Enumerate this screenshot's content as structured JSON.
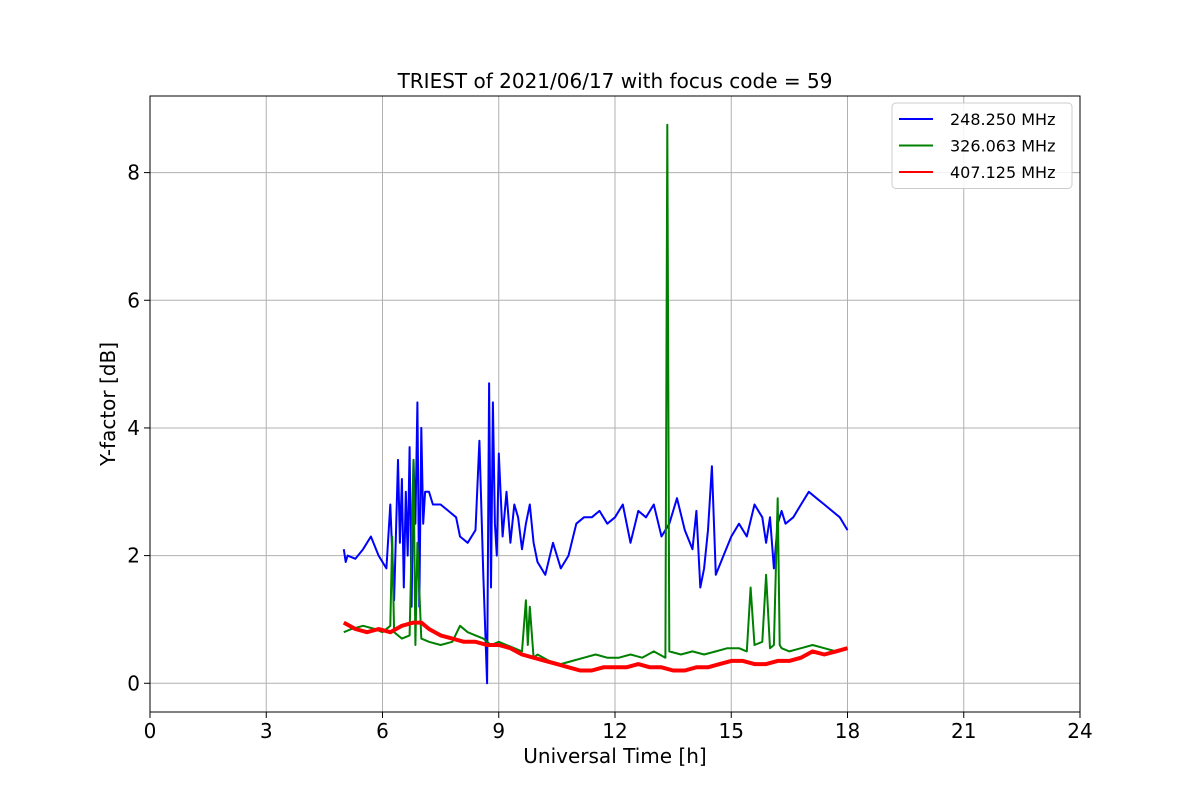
{
  "chart_data": {
    "type": "line",
    "title": "TRIEST of 2021/06/17 with focus code = 59",
    "xlabel": "Universal Time [h]",
    "ylabel": "Y-factor [dB]",
    "xlim": [
      0,
      24
    ],
    "ylim": [
      -0.45,
      9.2
    ],
    "x_ticks": [
      0,
      3,
      6,
      9,
      12,
      15,
      18,
      21,
      24
    ],
    "y_ticks": [
      0,
      2,
      4,
      6,
      8
    ],
    "grid": true,
    "legend_position": "top-right",
    "series": [
      {
        "name": "248.250 MHz",
        "color": "#0000ff",
        "x": [
          5.0,
          5.05,
          5.1,
          5.3,
          5.5,
          5.7,
          5.9,
          6.1,
          6.2,
          6.3,
          6.4,
          6.45,
          6.5,
          6.55,
          6.6,
          6.65,
          6.7,
          6.75,
          6.8,
          6.85,
          6.9,
          6.95,
          7.0,
          7.05,
          7.1,
          7.2,
          7.3,
          7.5,
          7.7,
          7.9,
          8.0,
          8.2,
          8.4,
          8.5,
          8.6,
          8.7,
          8.75,
          8.8,
          8.85,
          8.9,
          8.95,
          9.0,
          9.1,
          9.2,
          9.3,
          9.4,
          9.5,
          9.6,
          9.7,
          9.8,
          9.9,
          10.0,
          10.2,
          10.4,
          10.6,
          10.8,
          11.0,
          11.2,
          11.4,
          11.6,
          11.8,
          12.0,
          12.2,
          12.4,
          12.6,
          12.8,
          13.0,
          13.2,
          13.4,
          13.6,
          13.8,
          14.0,
          14.1,
          14.2,
          14.3,
          14.4,
          14.5,
          14.6,
          14.8,
          15.0,
          15.2,
          15.4,
          15.6,
          15.8,
          15.9,
          16.0,
          16.1,
          16.2,
          16.3,
          16.4,
          16.6,
          16.8,
          17.0,
          17.2,
          17.4,
          17.6,
          17.8,
          18.0
        ],
        "values": [
          2.1,
          1.9,
          2.0,
          1.95,
          2.1,
          2.3,
          2.0,
          1.8,
          2.8,
          1.3,
          3.5,
          2.2,
          3.2,
          1.5,
          3.0,
          2.0,
          3.7,
          1.2,
          3.5,
          2.5,
          4.4,
          1.2,
          4.0,
          2.5,
          3.0,
          3.0,
          2.8,
          2.8,
          2.7,
          2.6,
          2.3,
          2.2,
          2.4,
          3.8,
          1.7,
          0.0,
          4.7,
          1.5,
          4.4,
          2.5,
          2.0,
          3.6,
          2.3,
          3.0,
          2.2,
          2.8,
          2.6,
          2.1,
          2.5,
          2.8,
          2.2,
          1.9,
          1.7,
          2.2,
          1.8,
          2.0,
          2.5,
          2.6,
          2.6,
          2.7,
          2.5,
          2.6,
          2.8,
          2.2,
          2.7,
          2.6,
          2.8,
          2.3,
          2.5,
          2.9,
          2.4,
          2.1,
          2.7,
          1.5,
          1.8,
          2.4,
          3.4,
          1.7,
          2.0,
          2.3,
          2.5,
          2.3,
          2.8,
          2.6,
          2.2,
          2.6,
          1.8,
          2.5,
          2.7,
          2.5,
          2.6,
          2.8,
          3.0,
          2.9,
          2.8,
          2.7,
          2.6,
          2.4
        ]
      },
      {
        "name": "326.063 MHz",
        "color": "#008000",
        "x": [
          5.0,
          5.2,
          5.5,
          5.8,
          6.0,
          6.2,
          6.25,
          6.3,
          6.5,
          6.7,
          6.8,
          6.85,
          6.9,
          7.0,
          7.2,
          7.5,
          7.8,
          8.0,
          8.2,
          8.4,
          8.6,
          8.8,
          9.0,
          9.2,
          9.4,
          9.6,
          9.7,
          9.75,
          9.8,
          9.9,
          10.0,
          10.3,
          10.6,
          10.9,
          11.2,
          11.5,
          11.8,
          12.1,
          12.4,
          12.7,
          13.0,
          13.3,
          13.35,
          13.4,
          13.7,
          14.0,
          14.3,
          14.6,
          14.9,
          15.2,
          15.4,
          15.5,
          15.6,
          15.8,
          15.9,
          16.0,
          16.1,
          16.2,
          16.25,
          16.3,
          16.5,
          16.8,
          17.1,
          17.4,
          17.7,
          18.0
        ],
        "values": [
          0.8,
          0.85,
          0.9,
          0.85,
          0.8,
          0.9,
          2.3,
          0.8,
          0.7,
          0.75,
          3.5,
          0.6,
          2.2,
          0.7,
          0.65,
          0.6,
          0.65,
          0.9,
          0.8,
          0.75,
          0.7,
          0.6,
          0.65,
          0.6,
          0.55,
          0.5,
          1.3,
          0.6,
          1.2,
          0.4,
          0.45,
          0.35,
          0.3,
          0.35,
          0.4,
          0.45,
          0.4,
          0.4,
          0.45,
          0.4,
          0.5,
          0.4,
          8.75,
          0.5,
          0.45,
          0.5,
          0.45,
          0.5,
          0.55,
          0.55,
          0.5,
          1.5,
          0.6,
          0.65,
          1.7,
          0.55,
          0.6,
          2.9,
          0.6,
          0.55,
          0.5,
          0.55,
          0.6,
          0.55,
          0.5,
          0.55
        ]
      },
      {
        "name": "407.125 MHz",
        "color": "#ff0000",
        "x": [
          5.0,
          5.3,
          5.6,
          5.9,
          6.2,
          6.5,
          6.8,
          7.0,
          7.2,
          7.5,
          7.8,
          8.1,
          8.4,
          8.7,
          9.0,
          9.3,
          9.6,
          9.9,
          10.2,
          10.5,
          10.8,
          11.1,
          11.4,
          11.7,
          12.0,
          12.3,
          12.6,
          12.9,
          13.2,
          13.5,
          13.8,
          14.1,
          14.4,
          14.7,
          15.0,
          15.3,
          15.6,
          15.9,
          16.2,
          16.5,
          16.8,
          17.1,
          17.4,
          17.7,
          18.0
        ],
        "values": [
          0.95,
          0.85,
          0.8,
          0.85,
          0.8,
          0.9,
          0.95,
          0.95,
          0.85,
          0.75,
          0.7,
          0.65,
          0.65,
          0.6,
          0.6,
          0.55,
          0.45,
          0.4,
          0.35,
          0.3,
          0.25,
          0.2,
          0.2,
          0.25,
          0.25,
          0.25,
          0.3,
          0.25,
          0.25,
          0.2,
          0.2,
          0.25,
          0.25,
          0.3,
          0.35,
          0.35,
          0.3,
          0.3,
          0.35,
          0.35,
          0.4,
          0.5,
          0.45,
          0.5,
          0.55
        ]
      }
    ]
  }
}
